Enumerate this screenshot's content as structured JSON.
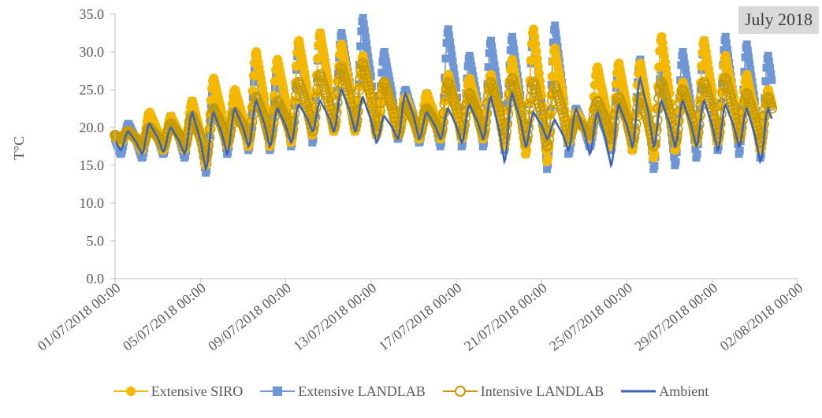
{
  "badge": "July 2018",
  "colors": {
    "siro": "#F5B800",
    "landlab_ext": "#6F97D6",
    "landlab_int": "#C79A00",
    "ambient": "#3A62B8",
    "axis": "#BFBFBF",
    "text": "#595959"
  },
  "chart_data": {
    "type": "line",
    "ylabel": "T°C",
    "ylim": [
      0,
      35
    ],
    "yticks": [
      "0.0",
      "5.0",
      "10.0",
      "15.0",
      "20.0",
      "25.0",
      "30.0",
      "35.0"
    ],
    "xlim_days": [
      0,
      32
    ],
    "xticks": [
      "01/07/2018 00:00",
      "05/07/2018 00:00",
      "09/07/2018 00:00",
      "13/07/2018 00:00",
      "17/07/2018 00:00",
      "21/07/2018 00:00",
      "25/07/2018 00:00",
      "29/07/2018 00:00",
      "02/08/2018 00:00"
    ],
    "daily_ambient": [
      [
        17.0,
        19.5
      ],
      [
        16.5,
        20.5
      ],
      [
        16.8,
        20.0
      ],
      [
        16.5,
        22.0
      ],
      [
        14.5,
        22.0
      ],
      [
        16.5,
        22.5
      ],
      [
        17.5,
        23.5
      ],
      [
        17.5,
        22.5
      ],
      [
        18.0,
        23.0
      ],
      [
        19.5,
        23.5
      ],
      [
        19.5,
        25.0
      ],
      [
        19.5,
        24.0
      ],
      [
        18.0,
        21.5
      ],
      [
        18.5,
        24.5
      ],
      [
        18.5,
        22.0
      ],
      [
        18.5,
        22.5
      ],
      [
        18.0,
        23.0
      ],
      [
        18.5,
        24.0
      ],
      [
        15.5,
        24.5
      ],
      [
        17.5,
        22.0
      ],
      [
        18.5,
        21.0
      ],
      [
        17.0,
        22.5
      ],
      [
        16.5,
        22.0
      ],
      [
        15.0,
        23.0
      ],
      [
        17.5,
        26.5
      ],
      [
        17.5,
        23.5
      ],
      [
        17.5,
        23.5
      ],
      [
        17.5,
        23.5
      ],
      [
        17.0,
        23.0
      ],
      [
        17.5,
        22.5
      ],
      [
        15.5,
        22.5
      ],
      [
        16.5,
        23.0
      ],
      [
        18.0,
        23.5
      ],
      [
        20.5,
        24.0
      ]
    ],
    "daily_extensive_landlab": [
      [
        16.5,
        20.5
      ],
      [
        16.0,
        21.0
      ],
      [
        16.5,
        21.5
      ],
      [
        16.0,
        23.5
      ],
      [
        14.0,
        26.0
      ],
      [
        16.5,
        24.5
      ],
      [
        17.0,
        29.0
      ],
      [
        17.0,
        28.0
      ],
      [
        17.5,
        31.0
      ],
      [
        18.0,
        32.5
      ],
      [
        19.5,
        32.5
      ],
      [
        19.5,
        34.5
      ],
      [
        19.0,
        30.0
      ],
      [
        18.5,
        25.0
      ],
      [
        18.0,
        24.5
      ],
      [
        17.5,
        33.0
      ],
      [
        17.5,
        29.5
      ],
      [
        17.5,
        31.5
      ],
      [
        17.0,
        32.0
      ],
      [
        16.5,
        32.5
      ],
      [
        14.5,
        33.5
      ],
      [
        16.5,
        22.5
      ],
      [
        17.5,
        22.5
      ],
      [
        17.0,
        28.0
      ],
      [
        17.0,
        29.0
      ],
      [
        14.5,
        28.0
      ],
      [
        15.0,
        30.0
      ],
      [
        16.0,
        31.5
      ],
      [
        17.0,
        32.0
      ],
      [
        16.5,
        31.0
      ],
      [
        16.0,
        29.5
      ],
      [
        15.0,
        31.5
      ],
      [
        18.0,
        31.5
      ],
      [
        20.5,
        29.0
      ]
    ],
    "daily_extensive_siro": [
      [
        18.0,
        19.5
      ],
      [
        17.0,
        22.0
      ],
      [
        17.0,
        21.5
      ],
      [
        17.0,
        23.5
      ],
      [
        15.0,
        26.5
      ],
      [
        17.5,
        25.0
      ],
      [
        17.5,
        30.0
      ],
      [
        17.5,
        29.0
      ],
      [
        18.0,
        31.5
      ],
      [
        19.0,
        32.5
      ],
      [
        19.5,
        31.0
      ],
      [
        19.5,
        29.5
      ],
      [
        19.0,
        26.0
      ],
      [
        19.0,
        24.0
      ],
      [
        18.5,
        24.5
      ],
      [
        18.5,
        27.0
      ],
      [
        18.5,
        26.5
      ],
      [
        18.5,
        27.0
      ],
      [
        17.5,
        29.0
      ],
      [
        16.5,
        33.0
      ],
      [
        15.5,
        30.5
      ],
      [
        18.0,
        22.0
      ],
      [
        18.5,
        28.0
      ],
      [
        17.5,
        28.5
      ],
      [
        17.0,
        28.5
      ],
      [
        16.0,
        32.0
      ],
      [
        17.0,
        26.0
      ],
      [
        18.0,
        31.5
      ],
      [
        18.0,
        29.5
      ],
      [
        18.5,
        27.0
      ],
      [
        17.0,
        25.0
      ],
      [
        16.5,
        27.0
      ],
      [
        18.5,
        29.0
      ],
      [
        21.0,
        24.0
      ]
    ],
    "daily_intensive_landlab": [
      [
        18.5,
        19.5
      ],
      [
        17.5,
        20.0
      ],
      [
        17.5,
        20.5
      ],
      [
        17.5,
        21.5
      ],
      [
        16.0,
        22.5
      ],
      [
        18.0,
        22.0
      ],
      [
        18.5,
        24.0
      ],
      [
        18.5,
        23.5
      ],
      [
        19.0,
        26.0
      ],
      [
        19.5,
        27.0
      ],
      [
        20.0,
        28.0
      ],
      [
        20.0,
        28.5
      ],
      [
        19.5,
        26.0
      ],
      [
        19.0,
        23.0
      ],
      [
        19.0,
        22.5
      ],
      [
        19.0,
        26.0
      ],
      [
        19.0,
        24.5
      ],
      [
        19.0,
        26.0
      ],
      [
        18.5,
        26.5
      ],
      [
        18.0,
        26.0
      ],
      [
        17.5,
        25.5
      ],
      [
        18.5,
        21.0
      ],
      [
        19.0,
        23.5
      ],
      [
        18.5,
        24.0
      ],
      [
        18.0,
        24.0
      ],
      [
        17.5,
        26.0
      ],
      [
        18.0,
        25.0
      ],
      [
        18.5,
        26.0
      ],
      [
        18.5,
        26.5
      ],
      [
        18.5,
        24.5
      ],
      [
        18.0,
        24.0
      ],
      [
        17.5,
        25.0
      ],
      [
        19.0,
        25.5
      ],
      [
        21.0,
        23.5
      ]
    ],
    "series": [
      {
        "name": "Extensive SIRO",
        "key": "daily_extensive_siro",
        "color_key": "siro",
        "marker": "circle"
      },
      {
        "name": "Extensive LANDLAB",
        "key": "daily_extensive_landlab",
        "color_key": "landlab_ext",
        "marker": "square"
      },
      {
        "name": "Intensive LANDLAB",
        "key": "daily_intensive_landlab",
        "color_key": "landlab_int",
        "marker": "ring"
      },
      {
        "name": "Ambient",
        "key": "daily_ambient",
        "color_key": "ambient",
        "marker": "none"
      }
    ]
  },
  "legend": {
    "siro": "Extensive SIRO",
    "ext_landlab": "Extensive LANDLAB",
    "int_landlab": "Intensive LANDLAB",
    "ambient": "Ambient"
  }
}
